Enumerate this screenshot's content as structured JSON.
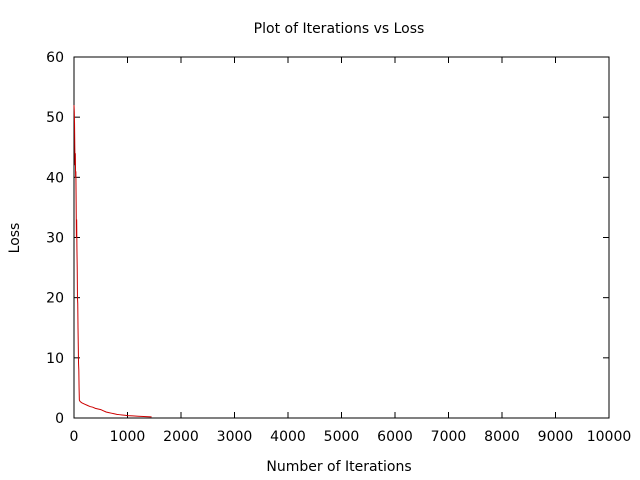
{
  "chart_data": {
    "type": "line",
    "title": "Plot of Iterations vs Loss",
    "xlabel": "Number of Iterations",
    "ylabel": "Loss",
    "xlim": [
      0,
      10000
    ],
    "ylim": [
      0,
      60
    ],
    "x_ticks": [
      0,
      1000,
      2000,
      3000,
      4000,
      5000,
      6000,
      7000,
      8000,
      9000,
      10000
    ],
    "y_ticks": [
      0,
      10,
      20,
      30,
      40,
      50,
      60
    ],
    "grid": false,
    "legend": "none",
    "series": [
      {
        "color": "#cc0000",
        "x": [
          0,
          5,
          10,
          15,
          20,
          25,
          30,
          35,
          40,
          45,
          50,
          55,
          60,
          65,
          70,
          75,
          80,
          85,
          90,
          95,
          100,
          110,
          120,
          150,
          200,
          250,
          300,
          350,
          400,
          450,
          500,
          550,
          600,
          650,
          700,
          750,
          800,
          850,
          900,
          950,
          1000,
          1100,
          1200,
          1300,
          1400,
          1450
        ],
        "y": [
          52,
          51,
          49,
          45,
          42,
          44,
          40,
          41,
          36,
          30,
          33,
          28,
          25,
          20,
          19,
          15,
          12,
          9,
          8,
          5,
          3,
          2.8,
          2.7,
          2.5,
          2.3,
          2.1,
          1.9,
          1.8,
          1.6,
          1.5,
          1.4,
          1.2,
          1.0,
          0.9,
          0.8,
          0.7,
          0.6,
          0.55,
          0.5,
          0.45,
          0.4,
          0.35,
          0.3,
          0.25,
          0.2,
          0.18
        ]
      }
    ]
  }
}
